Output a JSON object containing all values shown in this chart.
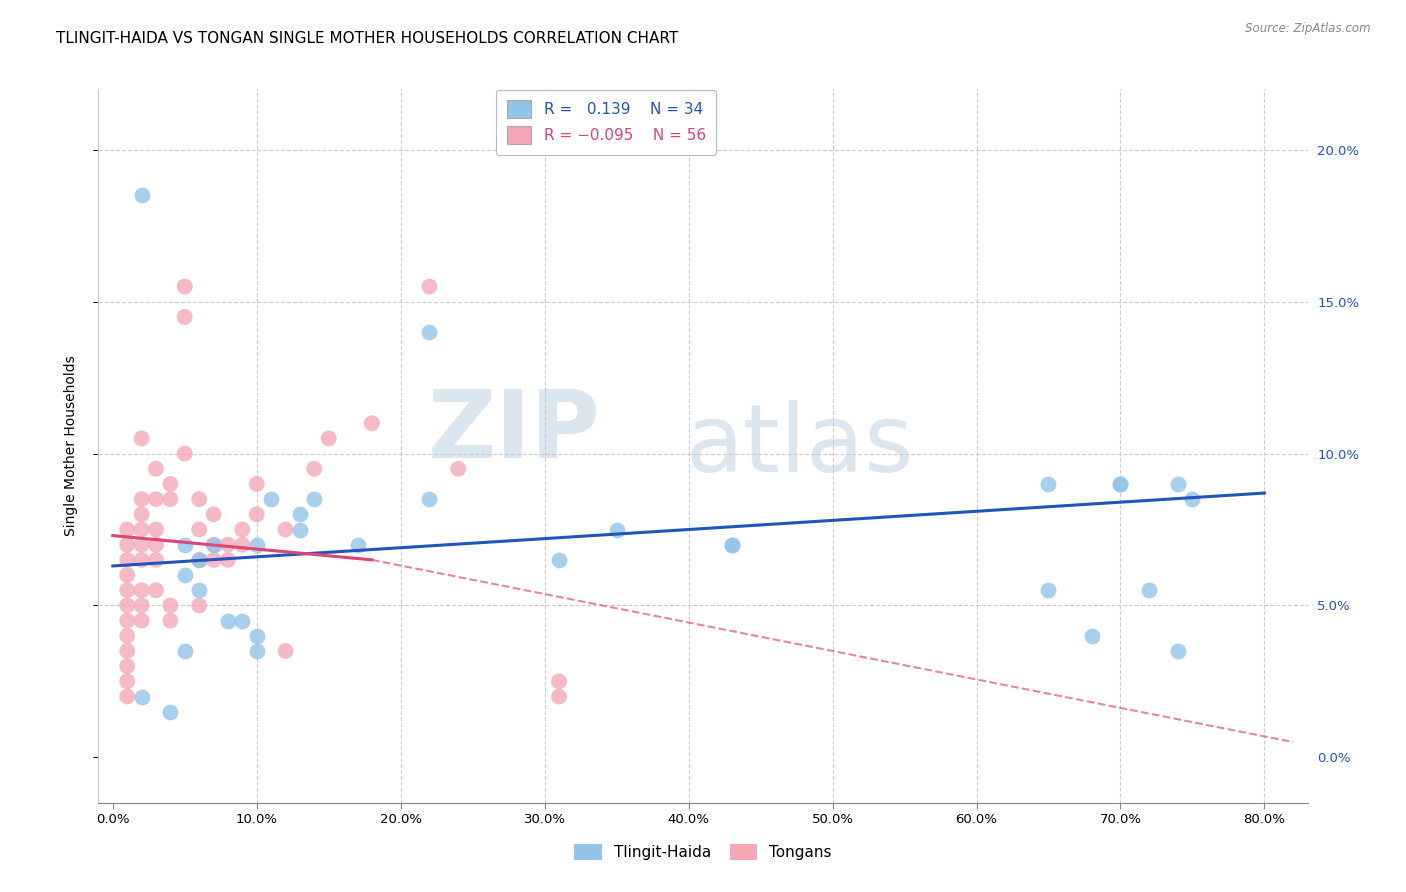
{
  "title": "TLINGIT-HAIDA VS TONGAN SINGLE MOTHER HOUSEHOLDS CORRELATION CHART",
  "source": "Source: ZipAtlas.com",
  "ylabel": "Single Mother Households",
  "xlabel_vals": [
    0,
    10,
    20,
    30,
    40,
    50,
    60,
    70,
    80
  ],
  "ylim": [
    -1.5,
    22
  ],
  "xlim": [
    -1,
    83
  ],
  "legend_blue_label": "Tlingit-Haida",
  "legend_pink_label": "Tongans",
  "blue_color": "#92c5e8",
  "pink_color": "#f4a8b8",
  "line_blue_color": "#2255bb",
  "line_pink_color": "#dd4477",
  "watermark_zip": "ZIP",
  "watermark_atlas": "atlas",
  "blue_scatter_x": [
    2,
    2,
    4,
    5,
    5,
    5,
    6,
    6,
    7,
    8,
    9,
    10,
    10,
    10,
    11,
    13,
    13,
    14,
    17,
    22,
    22,
    31,
    35,
    43,
    43,
    65,
    65,
    68,
    70,
    70,
    72,
    74,
    74,
    75
  ],
  "blue_scatter_y": [
    18.5,
    2.0,
    1.5,
    7.0,
    6.0,
    3.5,
    6.5,
    5.5,
    7.0,
    4.5,
    4.5,
    7.0,
    4.0,
    3.5,
    8.5,
    8.0,
    7.5,
    8.5,
    7.0,
    14.0,
    8.5,
    6.5,
    7.5,
    7.0,
    7.0,
    9.0,
    5.5,
    4.0,
    9.0,
    9.0,
    5.5,
    3.5,
    9.0,
    8.5
  ],
  "pink_scatter_x": [
    1,
    1,
    1,
    1,
    1,
    1,
    1,
    1,
    1,
    1,
    1,
    1,
    2,
    2,
    2,
    2,
    2,
    2,
    2,
    2,
    2,
    3,
    3,
    3,
    3,
    3,
    3,
    4,
    4,
    4,
    4,
    5,
    5,
    5,
    6,
    6,
    6,
    6,
    7,
    7,
    7,
    8,
    8,
    9,
    9,
    10,
    10,
    12,
    12,
    14,
    15,
    18,
    22,
    24,
    31,
    31
  ],
  "pink_scatter_y": [
    7.5,
    7.0,
    6.5,
    6.0,
    5.5,
    5.0,
    4.5,
    4.0,
    3.5,
    3.0,
    2.5,
    2.0,
    10.5,
    8.5,
    8.0,
    7.5,
    7.0,
    6.5,
    5.5,
    5.0,
    4.5,
    9.5,
    8.5,
    7.5,
    7.0,
    6.5,
    5.5,
    9.0,
    8.5,
    5.0,
    4.5,
    15.5,
    14.5,
    10.0,
    8.5,
    7.5,
    6.5,
    5.0,
    8.0,
    7.0,
    6.5,
    7.0,
    6.5,
    7.5,
    7.0,
    9.0,
    8.0,
    7.5,
    3.5,
    9.5,
    10.5,
    11.0,
    15.5,
    9.5,
    2.5,
    2.0
  ],
  "blue_line_x0": 0,
  "blue_line_x1": 80,
  "blue_line_y0": 6.3,
  "blue_line_y1": 8.7,
  "pink_solid_x0": 0,
  "pink_solid_x1": 18,
  "pink_solid_y0": 7.3,
  "pink_solid_y1": 6.5,
  "pink_dash_x0": 18,
  "pink_dash_x1": 82,
  "pink_dash_y0": 6.5,
  "pink_dash_y1": 0.5,
  "grid_color": "#cccccc",
  "title_fontsize": 11,
  "axis_label_fontsize": 10,
  "tick_fontsize": 9.5,
  "legend_fontsize": 11
}
